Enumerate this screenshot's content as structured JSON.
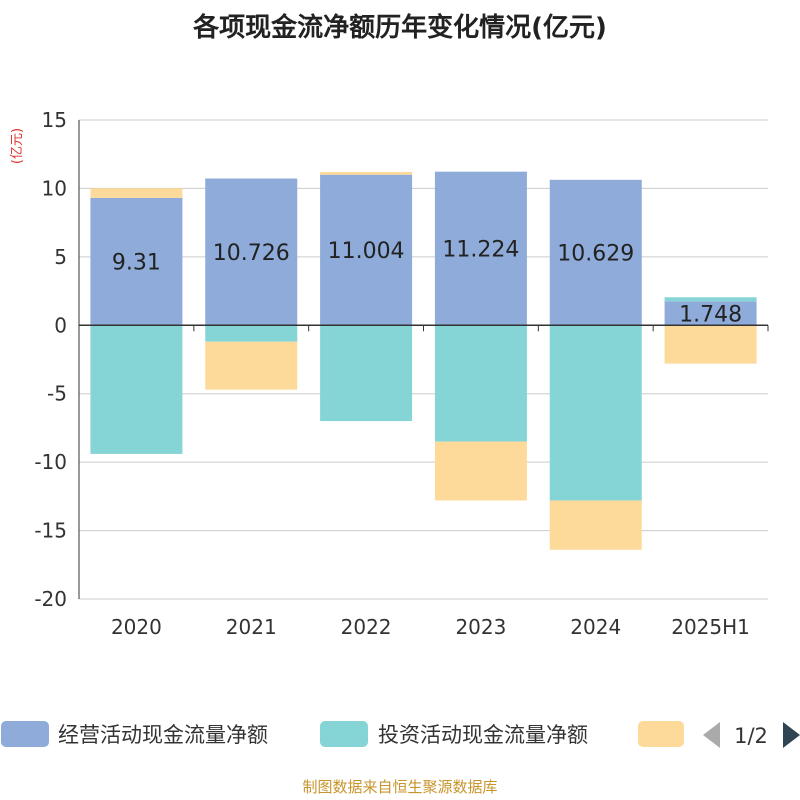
{
  "chart_data": {
    "type": "bar",
    "stacked": true,
    "title": "各项现金流净额历年变化情况(亿元)",
    "ylabel": "(亿元)",
    "ylim": [
      -20,
      15
    ],
    "yticks": [
      15,
      10,
      5,
      0,
      -5,
      -10,
      -15,
      -20
    ],
    "categories": [
      "2020",
      "2021",
      "2022",
      "2023",
      "2024",
      "2025H1"
    ],
    "series": [
      {
        "name": "经营活动现金流量净额",
        "color": "#8eabd9",
        "values": [
          9.31,
          10.726,
          11.004,
          11.224,
          10.629,
          1.748
        ],
        "labels": [
          "9.31",
          "10.726",
          "11.004",
          "11.224",
          "10.629",
          "1.748"
        ]
      },
      {
        "name": "投资活动现金流量净额",
        "color": "#86d5d6",
        "values": [
          -9.4,
          -1.2,
          -7.0,
          -8.5,
          -12.8,
          0.3
        ]
      },
      {
        "name": "",
        "color": "#fdd99a",
        "values": [
          0.7,
          -3.5,
          0.2,
          -4.3,
          -3.6,
          -2.8
        ]
      }
    ],
    "grid": true,
    "legend_position": "bottom"
  },
  "legend": {
    "page": "1/2"
  },
  "footer": "制图数据来自恒生聚源数据库"
}
